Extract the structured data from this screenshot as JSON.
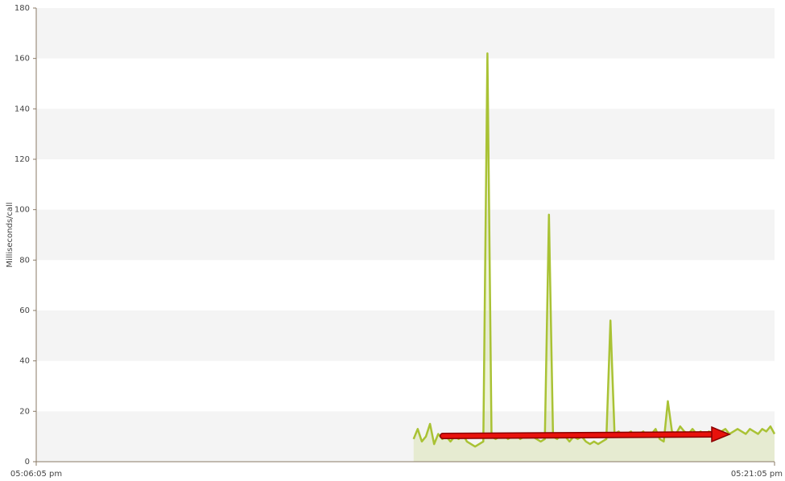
{
  "chart_data": {
    "type": "line",
    "y_label": "Milliseconds/call",
    "xlim": [
      0,
      900
    ],
    "xticks": [
      {
        "value": 0,
        "label": "05:06:05 pm"
      },
      {
        "value": 900,
        "label": "05:21:05 pm"
      }
    ],
    "ylim": [
      0,
      180
    ],
    "yticks": [
      0,
      20,
      40,
      60,
      80,
      100,
      120,
      140,
      160,
      180
    ],
    "grid": true,
    "area": true,
    "x": [
      460,
      465,
      470,
      475,
      480,
      485,
      490,
      495,
      500,
      505,
      510,
      515,
      520,
      525,
      530,
      535,
      540,
      545,
      550,
      555,
      560,
      565,
      570,
      575,
      580,
      585,
      590,
      595,
      600,
      605,
      610,
      615,
      620,
      625,
      630,
      635,
      640,
      645,
      650,
      655,
      660,
      665,
      670,
      675,
      680,
      685,
      690,
      695,
      700,
      705,
      710,
      715,
      720,
      725,
      730,
      735,
      740,
      745,
      750,
      755,
      760,
      765,
      770,
      775,
      780,
      785,
      790,
      795,
      800,
      805,
      810,
      815,
      820,
      825,
      830,
      835,
      840,
      845,
      850,
      855,
      860,
      865,
      870,
      875,
      880,
      885,
      890,
      895,
      900
    ],
    "series": [
      {
        "name": "Milliseconds/call",
        "color": "#a9c234",
        "values": [
          9,
          13,
          8,
          10,
          15,
          7,
          11,
          9,
          10,
          8,
          10,
          9,
          11,
          8,
          7,
          6,
          7,
          8,
          162,
          10,
          9,
          10,
          11,
          9,
          10,
          11,
          9,
          10,
          11,
          10,
          9,
          8,
          9,
          98,
          10,
          9,
          11,
          10,
          8,
          10,
          9,
          10,
          8,
          7,
          8,
          7,
          8,
          9,
          56,
          11,
          12,
          10,
          11,
          12,
          10,
          11,
          12,
          10,
          11,
          13,
          9,
          8,
          24,
          12,
          11,
          14,
          12,
          11,
          13,
          11,
          12,
          10,
          12,
          11,
          10,
          12,
          13,
          11,
          12,
          13,
          12,
          11,
          13,
          12,
          11,
          13,
          12,
          14,
          11
        ]
      }
    ]
  }
}
